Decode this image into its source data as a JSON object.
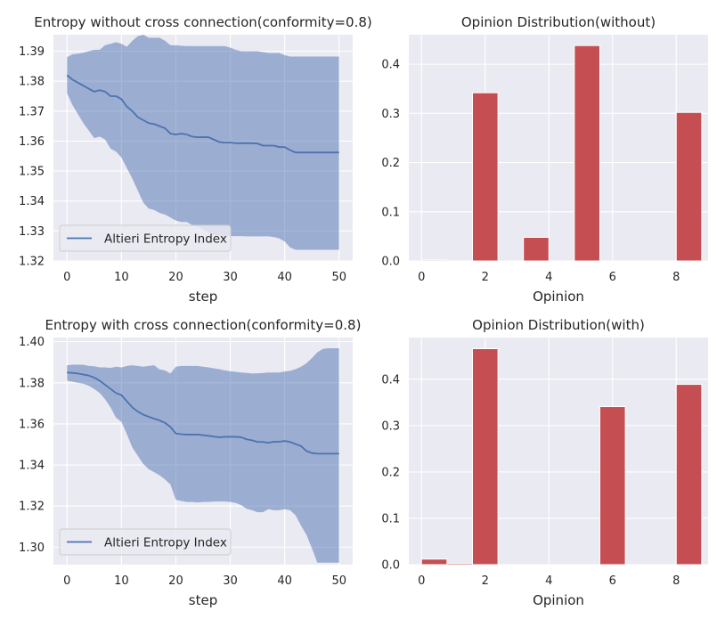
{
  "chart_data": [
    {
      "type": "line",
      "title": "Entropy without cross connection(conformity=0.8)",
      "xlabel": "step",
      "ylabel": "",
      "xlim": [
        -2.5,
        52.5
      ],
      "ylim": [
        1.32,
        1.3955
      ],
      "xticks": [
        0,
        10,
        20,
        30,
        40,
        50
      ],
      "yticks": [
        1.32,
        1.33,
        1.34,
        1.35,
        1.36,
        1.37,
        1.38,
        1.39
      ],
      "ytick_labels": [
        "1.32",
        "1.33",
        "1.34",
        "1.35",
        "1.36",
        "1.37",
        "1.38",
        "1.39"
      ],
      "grid": true,
      "legend": {
        "position": "bottom-left",
        "entries": [
          "Altieri Entropy Index"
        ]
      },
      "colors": {
        "line": "#4c72b0",
        "band": "#4c72b0"
      },
      "series": [
        {
          "name": "Altieri Entropy Index",
          "x": [
            0,
            1,
            2,
            3,
            4,
            5,
            6,
            7,
            8,
            9,
            10,
            11,
            12,
            13,
            14,
            15,
            16,
            17,
            18,
            19,
            20,
            21,
            22,
            23,
            24,
            25,
            26,
            27,
            28,
            29,
            30,
            31,
            32,
            33,
            34,
            35,
            36,
            37,
            38,
            39,
            40,
            41,
            42,
            43,
            44,
            45,
            46,
            47,
            48,
            49,
            50
          ],
          "y": [
            1.382,
            1.3805,
            1.3795,
            1.3785,
            1.3775,
            1.3765,
            1.377,
            1.3765,
            1.375,
            1.375,
            1.374,
            1.3715,
            1.37,
            1.368,
            1.367,
            1.366,
            1.3657,
            1.365,
            1.3643,
            1.3625,
            1.3622,
            1.3625,
            1.3622,
            1.3615,
            1.3613,
            1.3613,
            1.3613,
            1.3605,
            1.3597,
            1.3595,
            1.3595,
            1.3593,
            1.3593,
            1.3593,
            1.3593,
            1.3592,
            1.3585,
            1.3585,
            1.3585,
            1.358,
            1.358,
            1.357,
            1.3562,
            1.3562,
            1.3562,
            1.3562,
            1.3562,
            1.3562,
            1.3562,
            1.3562,
            1.3562
          ]
        }
      ],
      "band": {
        "lower": [
          1.376,
          1.372,
          1.369,
          1.366,
          1.3635,
          1.361,
          1.3615,
          1.3605,
          1.3575,
          1.3565,
          1.3545,
          1.351,
          1.3475,
          1.3435,
          1.3395,
          1.3375,
          1.337,
          1.336,
          1.3355,
          1.3345,
          1.3335,
          1.333,
          1.333,
          1.332,
          1.3315,
          1.3305,
          1.3295,
          1.3285,
          1.3285,
          1.3283,
          1.3283,
          1.3283,
          1.3283,
          1.3282,
          1.3282,
          1.3282,
          1.3282,
          1.3282,
          1.328,
          1.3275,
          1.3265,
          1.3245,
          1.3237,
          1.3237,
          1.3237,
          1.3237,
          1.3237,
          1.3237,
          1.3237,
          1.3237,
          1.3237
        ],
        "upper": [
          1.388,
          1.389,
          1.3892,
          1.3895,
          1.39,
          1.3905,
          1.3905,
          1.392,
          1.3925,
          1.393,
          1.3925,
          1.3915,
          1.3935,
          1.395,
          1.3955,
          1.3945,
          1.3945,
          1.3945,
          1.3935,
          1.392,
          1.392,
          1.3918,
          1.3917,
          1.3917,
          1.3917,
          1.3917,
          1.3917,
          1.3917,
          1.3917,
          1.3917,
          1.3912,
          1.3905,
          1.39,
          1.39,
          1.39,
          1.39,
          1.3897,
          1.3894,
          1.3894,
          1.3894,
          1.3887,
          1.3882,
          1.3882,
          1.3882,
          1.3882,
          1.3882,
          1.3882,
          1.3882,
          1.3882,
          1.3882,
          1.3882
        ]
      }
    },
    {
      "type": "bar",
      "title": "Opinion Distribution(without)",
      "xlabel": "Opinion",
      "ylabel": "",
      "xlim": [
        -0.4,
        9.0
      ],
      "ylim": [
        0,
        0.46
      ],
      "xticks": [
        0,
        2,
        4,
        6,
        8
      ],
      "yticks": [
        0.0,
        0.1,
        0.2,
        0.3,
        0.4
      ],
      "ytick_labels": [
        "0.0",
        "0.1",
        "0.2",
        "0.3",
        "0.4"
      ],
      "grid": true,
      "colors": {
        "bar": "#c44e52"
      },
      "bin_width": 0.8,
      "x": [
        0.0,
        0.8,
        1.6,
        2.4,
        3.2,
        4.0,
        4.8,
        5.6,
        6.4,
        7.2,
        8.0
      ],
      "values": [
        0.002,
        0.0,
        0.342,
        0.0,
        0.048,
        0.0,
        0.438,
        0.0,
        0.0,
        0.0,
        0.302
      ]
    },
    {
      "type": "line",
      "title": "Entropy with cross connection(conformity=0.8)",
      "xlabel": "step",
      "ylabel": "",
      "xlim": [
        -2.5,
        52.5
      ],
      "ylim": [
        1.2915,
        1.402
      ],
      "xticks": [
        0,
        10,
        20,
        30,
        40,
        50
      ],
      "yticks": [
        1.3,
        1.32,
        1.34,
        1.36,
        1.38,
        1.4
      ],
      "ytick_labels": [
        "1.30",
        "1.32",
        "1.34",
        "1.36",
        "1.38",
        "1.40"
      ],
      "grid": true,
      "legend": {
        "position": "bottom-left",
        "entries": [
          "Altieri Entropy Index"
        ]
      },
      "colors": {
        "line": "#4c72b0",
        "band": "#4c72b0"
      },
      "series": [
        {
          "name": "Altieri Entropy Index",
          "x": [
            0,
            1,
            2,
            3,
            4,
            5,
            6,
            7,
            8,
            9,
            10,
            11,
            12,
            13,
            14,
            15,
            16,
            17,
            18,
            19,
            20,
            21,
            22,
            23,
            24,
            25,
            26,
            27,
            28,
            29,
            30,
            31,
            32,
            33,
            34,
            35,
            36,
            37,
            38,
            39,
            40,
            41,
            42,
            43,
            44,
            45,
            46,
            47,
            48,
            49,
            50
          ],
          "y": [
            1.385,
            1.3848,
            1.3845,
            1.384,
            1.3835,
            1.3825,
            1.381,
            1.379,
            1.377,
            1.375,
            1.374,
            1.371,
            1.368,
            1.366,
            1.3645,
            1.3635,
            1.3625,
            1.3617,
            1.3605,
            1.3585,
            1.3553,
            1.355,
            1.3548,
            1.3548,
            1.3548,
            1.3545,
            1.3542,
            1.3538,
            1.3535,
            1.3537,
            1.3537,
            1.3537,
            1.3535,
            1.3525,
            1.352,
            1.3512,
            1.3512,
            1.3508,
            1.3513,
            1.3513,
            1.3517,
            1.3512,
            1.3502,
            1.3492,
            1.3468,
            1.3458,
            1.3455,
            1.3455,
            1.3455,
            1.3455,
            1.3455
          ]
        }
      ],
      "band": {
        "lower": [
          1.381,
          1.3805,
          1.38,
          1.3795,
          1.3785,
          1.377,
          1.375,
          1.372,
          1.368,
          1.363,
          1.361,
          1.355,
          1.3485,
          1.3445,
          1.3405,
          1.338,
          1.3365,
          1.335,
          1.333,
          1.3305,
          1.323,
          1.3225,
          1.322,
          1.322,
          1.3218,
          1.322,
          1.322,
          1.3222,
          1.3222,
          1.3222,
          1.322,
          1.3215,
          1.3205,
          1.3187,
          1.318,
          1.317,
          1.317,
          1.3185,
          1.318,
          1.318,
          1.3185,
          1.318,
          1.3155,
          1.3105,
          1.306,
          1.2995,
          1.2925,
          1.2925,
          1.2925,
          1.2925,
          1.2925
        ],
        "upper": [
          1.3885,
          1.3888,
          1.3888,
          1.3888,
          1.3882,
          1.388,
          1.3875,
          1.3875,
          1.3872,
          1.3878,
          1.3875,
          1.3882,
          1.3885,
          1.3882,
          1.3878,
          1.3882,
          1.3885,
          1.3865,
          1.386,
          1.3845,
          1.3878,
          1.3882,
          1.3882,
          1.3882,
          1.3882,
          1.3878,
          1.3875,
          1.387,
          1.3866,
          1.386,
          1.3856,
          1.3853,
          1.385,
          1.3848,
          1.3845,
          1.3846,
          1.3848,
          1.385,
          1.385,
          1.385,
          1.3855,
          1.3858,
          1.3866,
          1.3878,
          1.3895,
          1.392,
          1.3948,
          1.3965,
          1.3968,
          1.3968,
          1.3968
        ]
      }
    },
    {
      "type": "bar",
      "title": "Opinion Distribution(with)",
      "xlabel": "Opinion",
      "ylabel": "",
      "xlim": [
        -0.4,
        9.0
      ],
      "ylim": [
        0,
        0.49
      ],
      "xticks": [
        0,
        2,
        4,
        6,
        8
      ],
      "yticks": [
        0.0,
        0.1,
        0.2,
        0.3,
        0.4
      ],
      "ytick_labels": [
        "0.0",
        "0.1",
        "0.2",
        "0.3",
        "0.4"
      ],
      "grid": true,
      "colors": {
        "bar": "#c44e52"
      },
      "bin_width": 0.8,
      "x": [
        0.0,
        0.8,
        1.6,
        2.4,
        3.2,
        4.0,
        4.8,
        5.6,
        6.4,
        7.2,
        8.0
      ],
      "values": [
        0.012,
        0.003,
        0.466,
        0.0,
        0.0,
        0.0,
        0.0,
        0.341,
        0.0,
        0.0,
        0.389
      ]
    }
  ]
}
